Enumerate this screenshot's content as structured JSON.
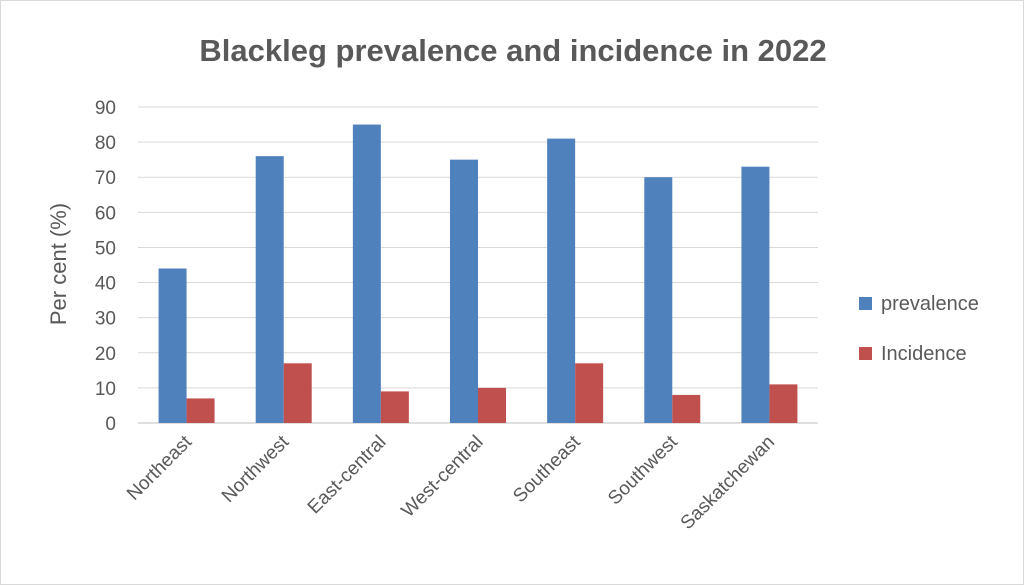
{
  "chart_data": {
    "type": "bar",
    "title": "Blackleg prevalence and incidence in 2022",
    "xlabel": "",
    "ylabel": "Per cent (%)",
    "ylim": [
      0,
      90
    ],
    "yticks": [
      0,
      10,
      20,
      30,
      40,
      50,
      60,
      70,
      80,
      90
    ],
    "categories": [
      "Northeast",
      "Northwest",
      "East-central",
      "West-central",
      "Southeast",
      "Southwest",
      "Saskatchewan"
    ],
    "series": [
      {
        "name": "prevalence",
        "color": "#4f81bd",
        "values": [
          44,
          76,
          85,
          75,
          81,
          70,
          73
        ]
      },
      {
        "name": "Incidence",
        "color": "#c0504d",
        "values": [
          7,
          17,
          9,
          10,
          17,
          8,
          11
        ]
      }
    ],
    "grid": true,
    "legend_position": "right"
  }
}
